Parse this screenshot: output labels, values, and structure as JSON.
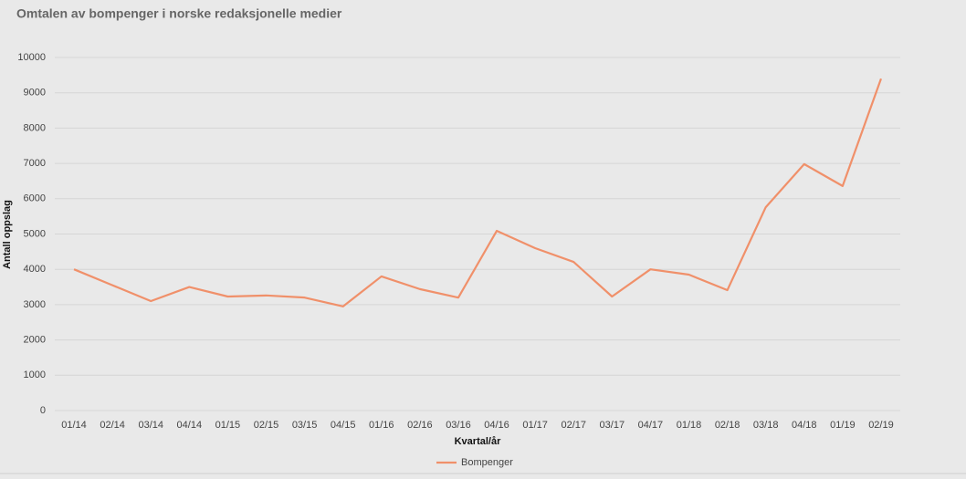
{
  "chart_data": {
    "type": "line",
    "title": "Omtalen av bompenger i norske redaksjonelle medier",
    "x_label": "Kvartal/år",
    "y_label": "Antall oppslag",
    "categories": [
      "01/14",
      "02/14",
      "03/14",
      "04/14",
      "01/15",
      "02/15",
      "03/15",
      "04/15",
      "01/16",
      "02/16",
      "03/16",
      "04/16",
      "01/17",
      "02/17",
      "03/17",
      "04/17",
      "01/18",
      "02/18",
      "03/18",
      "04/18",
      "01/19",
      "02/19"
    ],
    "series": [
      {
        "name": "Bompenger",
        "color": "#f0906a",
        "values": [
          4000,
          3550,
          3100,
          3500,
          3230,
          3260,
          3200,
          2950,
          3800,
          3440,
          3200,
          5090,
          4600,
          4210,
          3230,
          4000,
          3850,
          3410,
          5760,
          6980,
          6360,
          9400
        ]
      }
    ],
    "ylim": [
      0,
      10000
    ],
    "yticks": [
      0,
      1000,
      2000,
      3000,
      4000,
      5000,
      6000,
      7000,
      8000,
      9000,
      10000
    ],
    "grid": true,
    "legend": "bottom"
  }
}
